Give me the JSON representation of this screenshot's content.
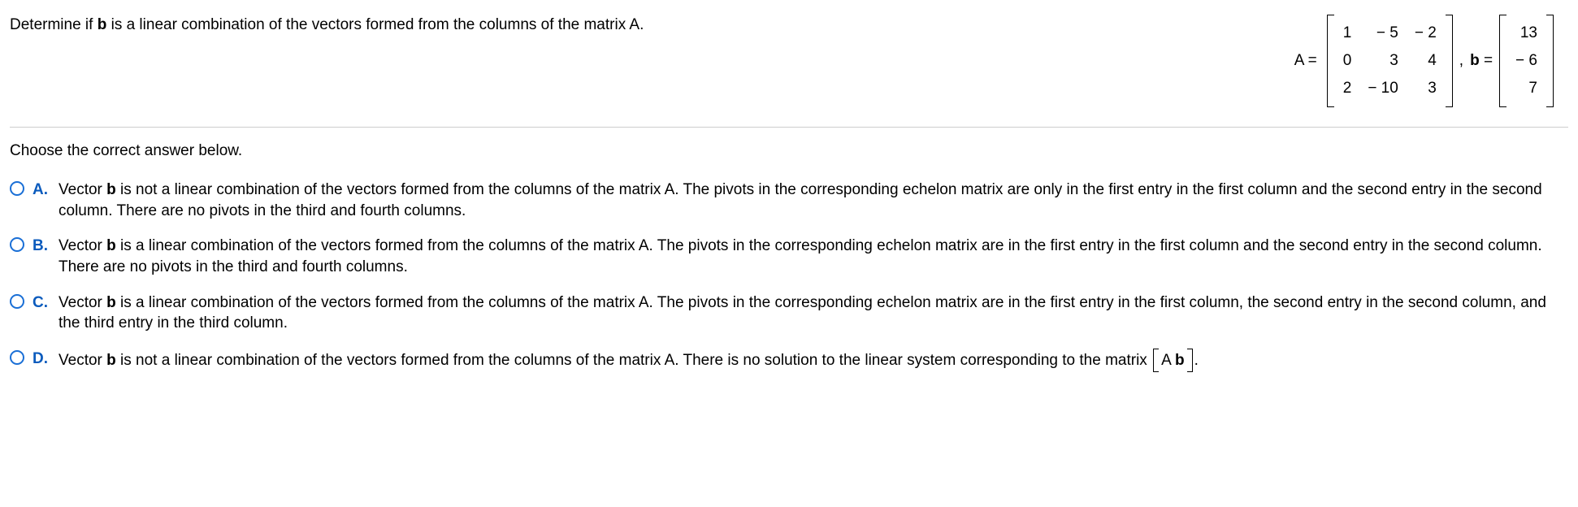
{
  "question": {
    "prefix": "Determine if ",
    "bold1": "b",
    "suffix": " is a linear combination of the vectors formed from the columns of the matrix A."
  },
  "matrices": {
    "A_label": "A =",
    "A": [
      [
        "1",
        "− 5",
        "− 2"
      ],
      [
        "0",
        "3",
        "4"
      ],
      [
        "2",
        "− 10",
        "3"
      ]
    ],
    "sep": ", ",
    "b_label_bold": "b",
    "b_label_rest": " =",
    "b": [
      [
        "13"
      ],
      [
        "− 6"
      ],
      [
        "7"
      ]
    ]
  },
  "prompt": "Choose the correct answer below.",
  "options": [
    {
      "letter": "A.",
      "pre": "Vector ",
      "b": "b",
      "post": " is not a linear combination of the vectors formed from the columns of the matrix A. The pivots in the corresponding echelon matrix are only in the first entry in the first column and the second entry in the second column. There are no pivots in the third and fourth columns."
    },
    {
      "letter": "B.",
      "pre": "Vector ",
      "b": "b",
      "post": " is a linear combination of the vectors formed from the columns of the matrix A. The pivots in the corresponding echelon matrix are in the first entry in the first column and the second entry in the second column. There are no pivots in the third and fourth columns."
    },
    {
      "letter": "C.",
      "pre": "Vector ",
      "b": "b",
      "post": " is a linear combination of the vectors formed from the columns of the matrix A. The pivots in the corresponding echelon matrix are in the first entry in the first column, the second entry in the second column, and the third entry in the third column."
    },
    {
      "letter": "D.",
      "pre": "Vector ",
      "b": "b",
      "post_before_matrix": " is not a linear combination of the vectors formed from the columns of the matrix A. There is no solution to the linear system corresponding to the matrix ",
      "inline_matrix_A": "A",
      "inline_matrix_gap": "  ",
      "inline_matrix_b": "b",
      "post_after_matrix": "."
    }
  ]
}
